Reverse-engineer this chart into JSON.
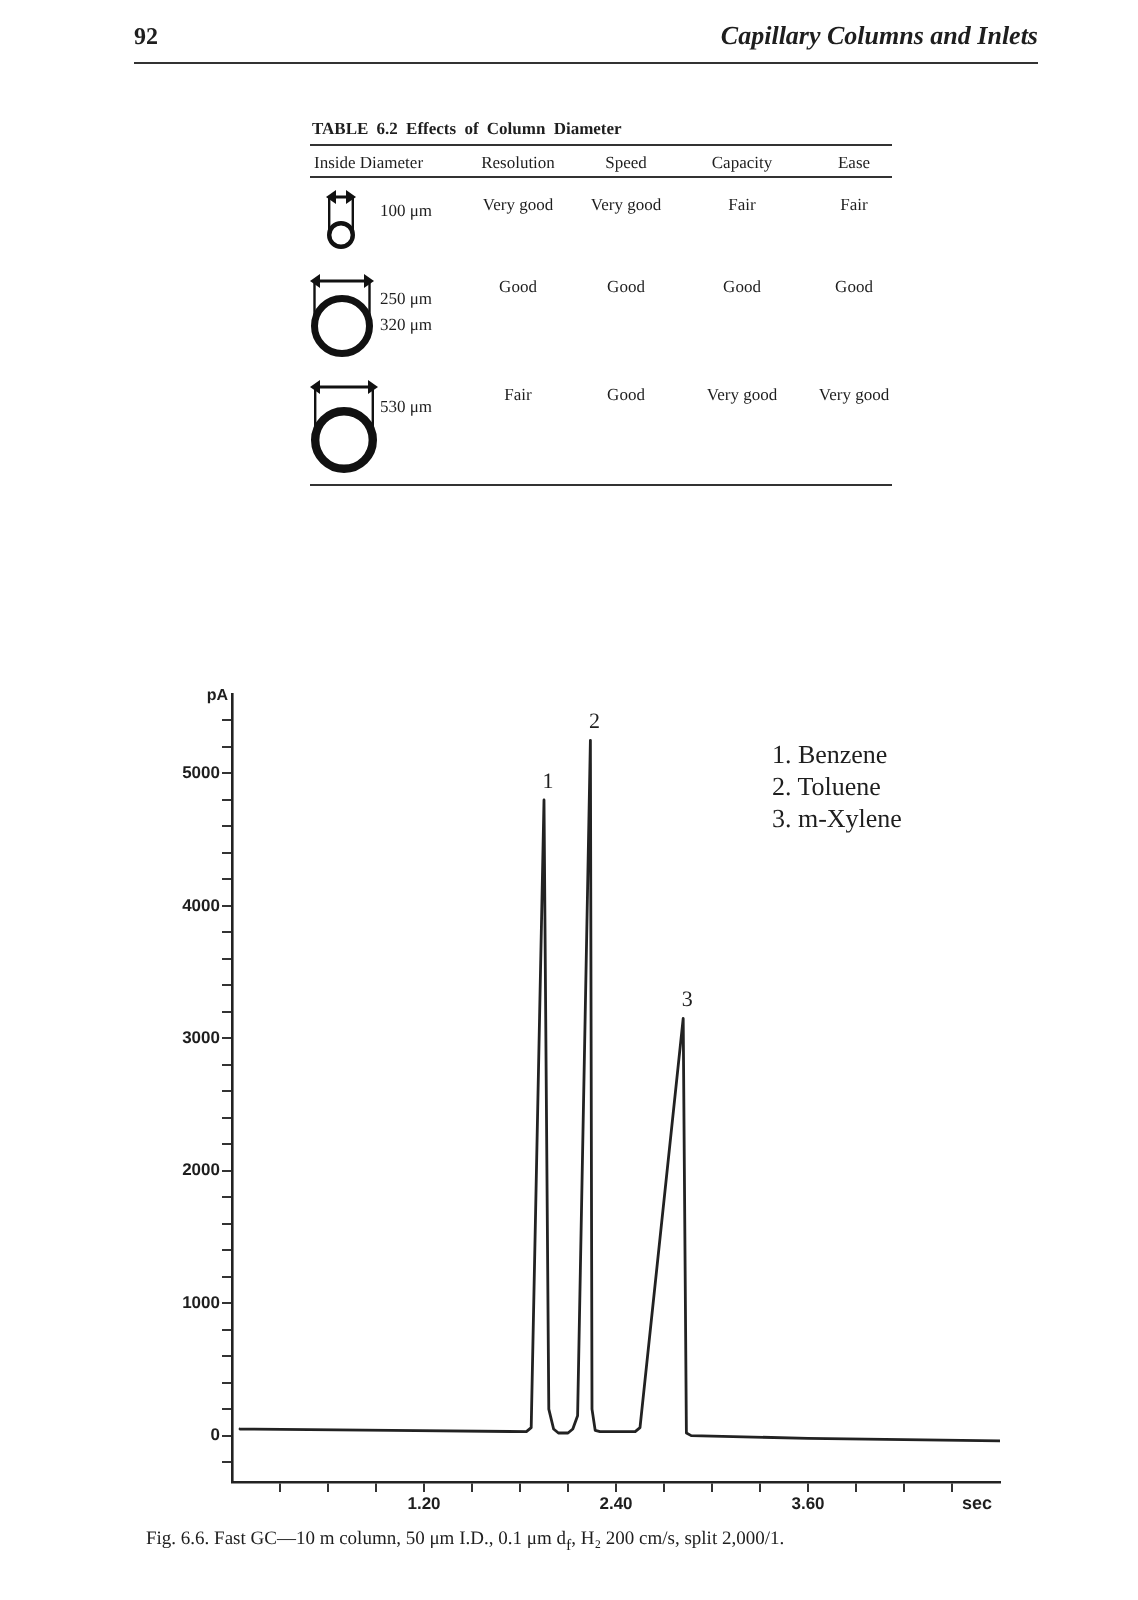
{
  "chart_data": [
    {
      "type": "other",
      "title": "TABLE 6.2 Effects of Column Diameter",
      "ylabel": "Inside Diameter",
      "categories": [
        "Resolution",
        "Speed",
        "Capacity",
        "Ease"
      ],
      "y_categories": [
        "100 μm",
        "250 μm\n320 μm",
        "530 μm"
      ],
      "cell_labels": [
        [
          "Very good",
          "Very good",
          "Fair",
          "Fair"
        ],
        [
          "Good",
          "Good",
          "Good",
          "Good"
        ],
        [
          "Fair",
          "Good",
          "Very good",
          "Very good"
        ]
      ],
      "annotations": [
        "92",
        "Capillary Columns and Inlets"
      ]
    },
    {
      "type": "line",
      "x": [
        0.05,
        1.0,
        1.84,
        1.87,
        1.95,
        1.98,
        2.01,
        2.04,
        2.1,
        2.13,
        2.16,
        2.24,
        2.25,
        2.27,
        2.3,
        2.52,
        2.55,
        2.82,
        2.84,
        2.87,
        3.6,
        4.8
      ],
      "series": [
        {
          "color": "#222222",
          "values": [
            50,
            40,
            30,
            60,
            4800,
            200,
            50,
            20,
            20,
            50,
            150,
            5250,
            200,
            40,
            30,
            30,
            60,
            3150,
            20,
            0,
            -20,
            -40
          ]
        }
      ],
      "xlim": [
        0,
        4.8
      ],
      "xticks": [
        {
          "value": 0.3,
          "label": null
        },
        {
          "value": 0.6,
          "label": null
        },
        {
          "value": 0.9,
          "label": null
        },
        {
          "value": 1.2,
          "label": "1.20"
        },
        {
          "value": 1.5,
          "label": null
        },
        {
          "value": 1.8,
          "label": null
        },
        {
          "value": 2.1,
          "label": null
        },
        {
          "value": 2.4,
          "label": "2.40"
        },
        {
          "value": 2.7,
          "label": null
        },
        {
          "value": 3.0,
          "label": null
        },
        {
          "value": 3.3,
          "label": null
        },
        {
          "value": 3.6,
          "label": "3.60"
        },
        {
          "value": 3.9,
          "label": null
        },
        {
          "value": 4.2,
          "label": null
        },
        {
          "value": 4.5,
          "label": null
        }
      ],
      "ylim": [
        -350,
        5600
      ],
      "yticks": [
        {
          "value": -200,
          "label": null
        },
        0,
        {
          "value": 200,
          "label": null
        },
        {
          "value": 400,
          "label": null
        },
        {
          "value": 600,
          "label": null
        },
        {
          "value": 800,
          "label": null
        },
        1000,
        {
          "value": 1200,
          "label": null
        },
        {
          "value": 1400,
          "label": null
        },
        {
          "value": 1600,
          "label": null
        },
        {
          "value": 1800,
          "label": null
        },
        2000,
        {
          "value": 2200,
          "label": null
        },
        {
          "value": 2400,
          "label": null
        },
        {
          "value": 2600,
          "label": null
        },
        {
          "value": 2800,
          "label": null
        },
        3000,
        {
          "value": 3200,
          "label": null
        },
        {
          "value": 3400,
          "label": null
        },
        {
          "value": 3600,
          "label": null
        },
        {
          "value": 3800,
          "label": null
        },
        4000,
        {
          "value": 4200,
          "label": null
        },
        {
          "value": 4400,
          "label": null
        },
        {
          "value": 4600,
          "label": null
        },
        {
          "value": 4800,
          "label": null
        },
        5000,
        {
          "value": 5200,
          "label": null
        },
        {
          "value": 5400,
          "label": null
        }
      ],
      "xlabel": "sec",
      "ylabel": "pA",
      "line_style": "solid",
      "annotations": [
        {
          "text": "1",
          "x": 1.95,
          "y": 4800
        },
        {
          "text": "2",
          "x": 2.24,
          "y": 5250
        },
        {
          "text": "3",
          "x": 2.82,
          "y": 3150
        },
        "1. Benzene",
        "2. Toluene",
        "3. m-Xylene",
        "Fig. 6.6. Fast GC—10 m column, 50 μm I.D., 0.1 μm d$_{f}$, H₂ 200 cm/s, split 2,000/1."
      ]
    }
  ]
}
